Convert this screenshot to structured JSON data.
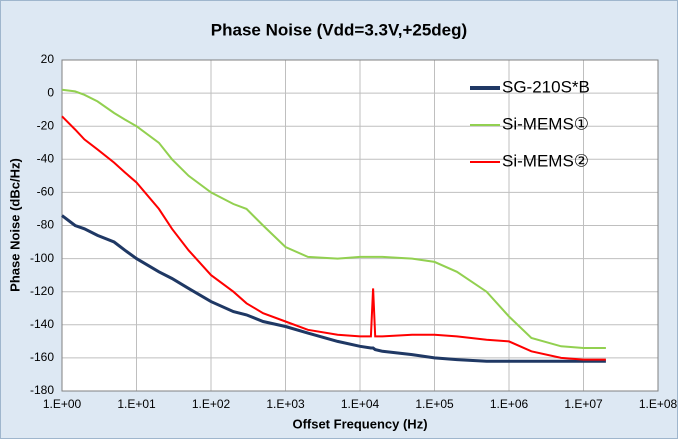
{
  "chart_data": {
    "type": "line",
    "title": "Phase Noise (Vdd=3.3V,+25deg)",
    "x_label": "Offset Frequency (Hz)",
    "y_label": "Phase Noise (dBc/Hz)",
    "x_scale": "log",
    "grid": true,
    "legend": "upper right",
    "xlim": [
      1,
      100000000
    ],
    "ylim": [
      -180,
      20
    ],
    "xticks": [
      {
        "value": 1,
        "label": "1.E+00"
      },
      {
        "value": 10,
        "label": "1.E+01"
      },
      {
        "value": 100,
        "label": "1.E+02"
      },
      {
        "value": 1000,
        "label": "1.E+03"
      },
      {
        "value": 10000,
        "label": "1.E+04"
      },
      {
        "value": 100000,
        "label": "1.E+05"
      },
      {
        "value": 1000000,
        "label": "1.E+06"
      },
      {
        "value": 10000000,
        "label": "1.E+07"
      },
      {
        "value": 100000000,
        "label": "1.E+08"
      }
    ],
    "yticks": [
      -180,
      -160,
      -140,
      -120,
      -100,
      -80,
      -60,
      -40,
      -20,
      0,
      20
    ],
    "x": [
      1,
      1.5,
      2,
      3,
      5,
      7,
      10,
      20,
      30,
      50,
      100,
      200,
      300,
      500,
      1000,
      2000,
      5000,
      10000,
      14000,
      15000,
      16000,
      20000,
      50000,
      100000,
      200000,
      500000,
      1000000,
      2000000,
      5000000,
      10000000,
      20000000
    ],
    "series": [
      {
        "name": "SG-210S*B",
        "color": "#1f3864",
        "values": [
          -74,
          -80,
          -82,
          -86,
          -90,
          -95,
          -100,
          -108,
          -112,
          -118,
          -126,
          -132,
          -134,
          -138,
          -141,
          -145,
          -150,
          -153,
          -154,
          -154,
          -155,
          -156,
          -158,
          -160,
          -161,
          -162,
          -162,
          -162,
          -162,
          -162,
          -162
        ]
      },
      {
        "name": "Si-MEMS①",
        "color": "#92d050",
        "values": [
          2,
          1,
          -1,
          -5,
          -12,
          -16,
          -20,
          -30,
          -40,
          -50,
          -60,
          -67,
          -70,
          -80,
          -93,
          -99,
          -100,
          -99,
          -99,
          -99,
          -99,
          -99,
          -100,
          -102,
          -108,
          -120,
          -135,
          -148,
          -153,
          -154,
          -154
        ]
      },
      {
        "name": "Si-MEMS②",
        "color": "#ff0000",
        "values": [
          -14,
          -22,
          -28,
          -34,
          -42,
          -48,
          -54,
          -70,
          -82,
          -95,
          -110,
          -120,
          -127,
          -133,
          -138,
          -143,
          -146,
          -147,
          -147,
          -118,
          -147,
          -147,
          -146,
          -146,
          -147,
          -149,
          -150,
          -156,
          -160,
          -161,
          -161
        ]
      }
    ]
  }
}
